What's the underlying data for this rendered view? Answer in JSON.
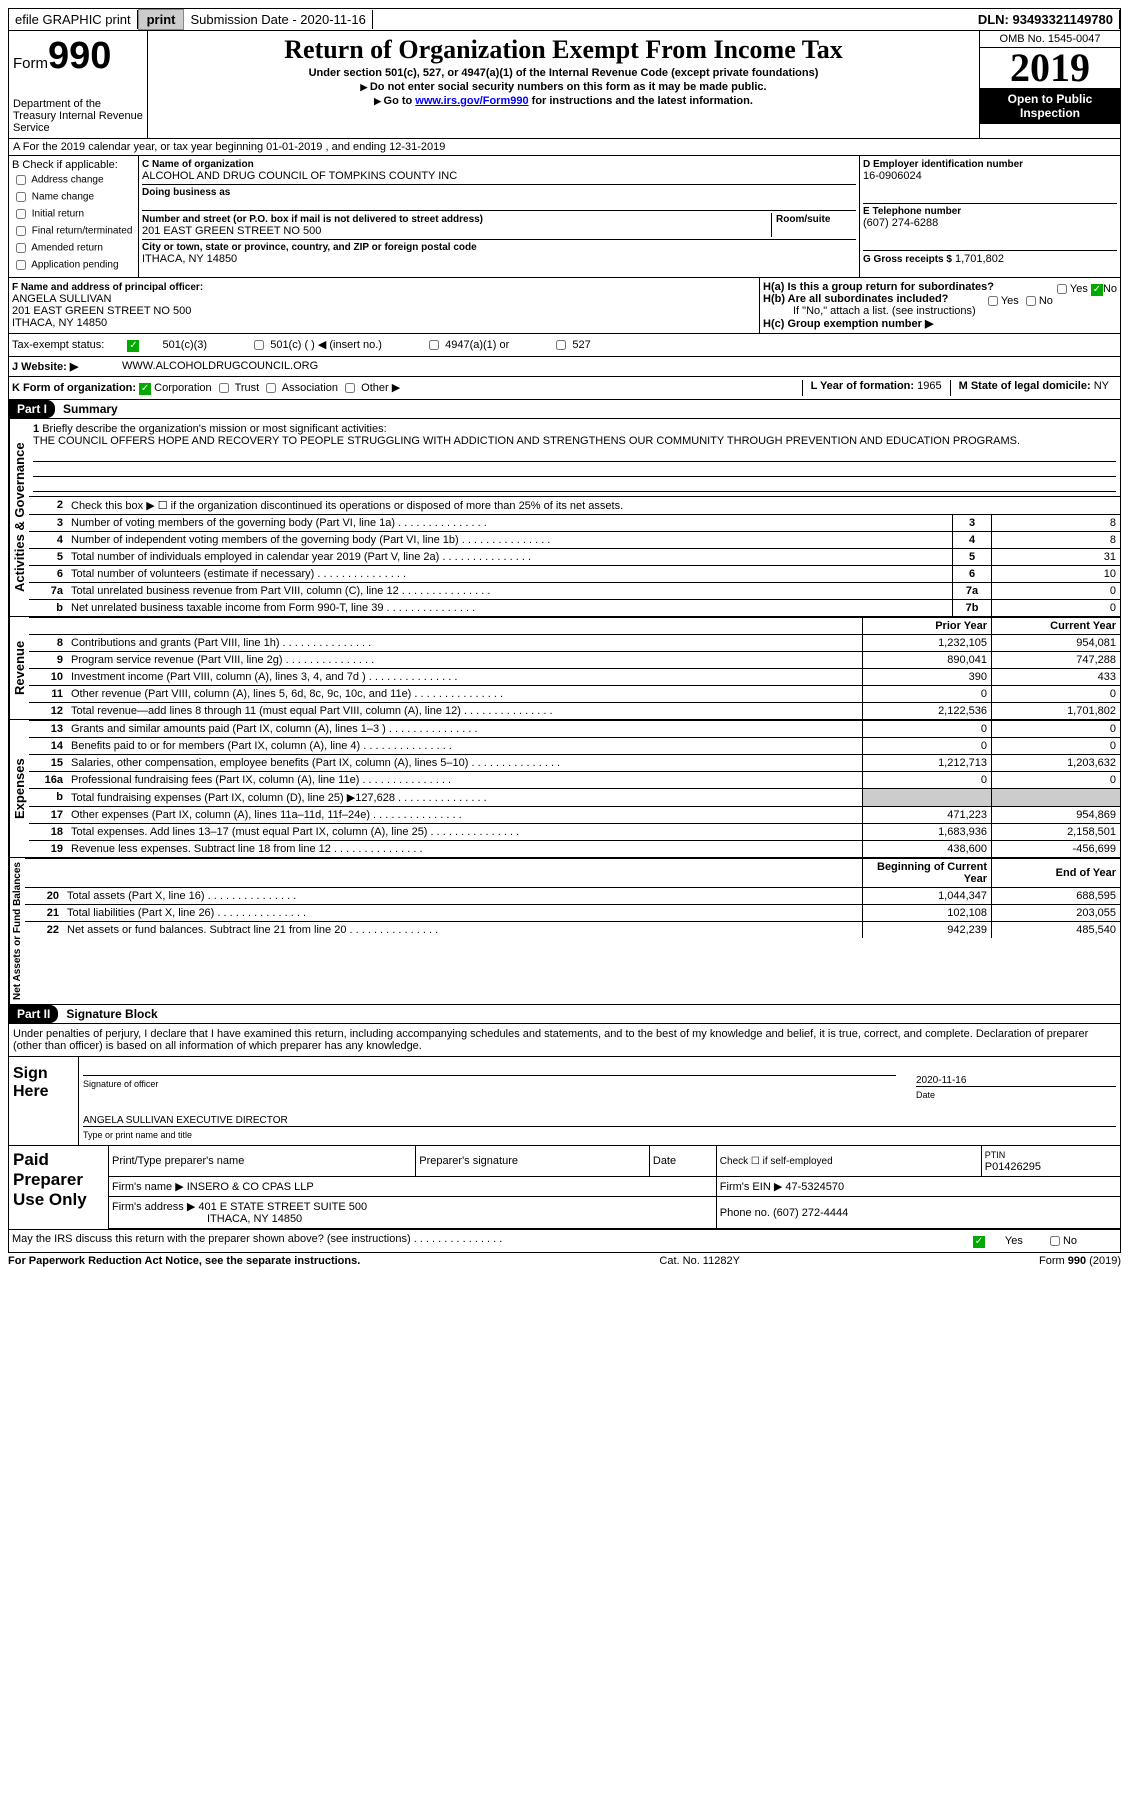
{
  "topbar": {
    "efile": "efile GRAPHIC print",
    "subdate_label": "Submission Date - 2020-11-16",
    "dln": "DLN: 93493321149780"
  },
  "header": {
    "form_word": "Form",
    "form_num": "990",
    "dept": "Department of the Treasury Internal Revenue Service",
    "title": "Return of Organization Exempt From Income Tax",
    "sub1": "Under section 501(c), 527, or 4947(a)(1) of the Internal Revenue Code (except private foundations)",
    "sub2": "Do not enter social security numbers on this form as it may be made public.",
    "sub3_pre": "Go to ",
    "sub3_link": "www.irs.gov/Form990",
    "sub3_post": " for instructions and the latest information.",
    "omb": "OMB No. 1545-0047",
    "year": "2019",
    "open": "Open to Public Inspection"
  },
  "rowA": "A For the 2019 calendar year, or tax year beginning 01-01-2019    , and ending 12-31-2019",
  "boxB": {
    "label": "B Check if applicable:",
    "items": [
      "Address change",
      "Name change",
      "Initial return",
      "Final return/terminated",
      "Amended return",
      "Application pending"
    ]
  },
  "boxC": {
    "name_label": "C Name of organization",
    "name": "ALCOHOL AND DRUG COUNCIL OF TOMPKINS COUNTY INC",
    "dba_label": "Doing business as",
    "addr_label": "Number and street (or P.O. box if mail is not delivered to street address)",
    "room_label": "Room/suite",
    "addr": "201 EAST GREEN STREET NO 500",
    "city_label": "City or town, state or province, country, and ZIP or foreign postal code",
    "city": "ITHACA, NY  14850"
  },
  "boxD": {
    "label": "D Employer identification number",
    "val": "16-0906024"
  },
  "boxE": {
    "label": "E Telephone number",
    "val": "(607) 274-6288"
  },
  "boxG": {
    "label": "G Gross receipts $",
    "val": "1,701,802"
  },
  "boxF": {
    "label": "F  Name and address of principal officer:",
    "name": "ANGELA SULLIVAN",
    "addr": "201 EAST GREEN STREET NO 500",
    "city": "ITHACA, NY  14850"
  },
  "boxH": {
    "a": "H(a)  Is this a group return for subordinates?",
    "b": "H(b)  Are all subordinates included?",
    "note": "If \"No,\" attach a list. (see instructions)",
    "c": "H(c)  Group exemption number ▶",
    "yes": "Yes",
    "no": "No"
  },
  "status": {
    "label": "Tax-exempt status:",
    "c3": "501(c)(3)",
    "c": "501(c) (   ) ◀ (insert no.)",
    "a1": "4947(a)(1) or",
    "s527": "527"
  },
  "boxJ": {
    "label": "J    Website: ▶",
    "val": "WWW.ALCOHOLDRUGCOUNCIL.ORG"
  },
  "boxK": {
    "label": "K Form of organization:",
    "corp": "Corporation",
    "trust": "Trust",
    "assoc": "Association",
    "other": "Other ▶"
  },
  "boxL": {
    "label": "L Year of formation:",
    "val": "1965"
  },
  "boxM": {
    "label": "M State of legal domicile:",
    "val": "NY"
  },
  "part1": {
    "num": "Part I",
    "title": "Summary"
  },
  "p1": {
    "l1": "Briefly describe the organization's mission or most significant activities:",
    "mission": "THE COUNCIL OFFERS HOPE AND RECOVERY TO PEOPLE STRUGGLING WITH ADDICTION AND STRENGTHENS OUR COMMUNITY THROUGH PREVENTION AND EDUCATION PROGRAMS.",
    "l2": "Check this box ▶ ☐  if the organization discontinued its operations or disposed of more than 25% of its net assets.",
    "lines": [
      {
        "n": "3",
        "t": "Number of voting members of the governing body (Part VI, line 1a)",
        "b": "3",
        "v": "8"
      },
      {
        "n": "4",
        "t": "Number of independent voting members of the governing body (Part VI, line 1b)",
        "b": "4",
        "v": "8"
      },
      {
        "n": "5",
        "t": "Total number of individuals employed in calendar year 2019 (Part V, line 2a)",
        "b": "5",
        "v": "31"
      },
      {
        "n": "6",
        "t": "Total number of volunteers (estimate if necessary)",
        "b": "6",
        "v": "10"
      },
      {
        "n": "7a",
        "t": "Total unrelated business revenue from Part VIII, column (C), line 12",
        "b": "7a",
        "v": "0"
      },
      {
        "n": "b",
        "t": "Net unrelated business taxable income from Form 990-T, line 39",
        "b": "7b",
        "v": "0"
      }
    ],
    "prior": "Prior Year",
    "current": "Current Year",
    "rev": [
      {
        "n": "8",
        "t": "Contributions and grants (Part VIII, line 1h)",
        "p": "1,232,105",
        "c": "954,081"
      },
      {
        "n": "9",
        "t": "Program service revenue (Part VIII, line 2g)",
        "p": "890,041",
        "c": "747,288"
      },
      {
        "n": "10",
        "t": "Investment income (Part VIII, column (A), lines 3, 4, and 7d )",
        "p": "390",
        "c": "433"
      },
      {
        "n": "11",
        "t": "Other revenue (Part VIII, column (A), lines 5, 6d, 8c, 9c, 10c, and 11e)",
        "p": "0",
        "c": "0"
      },
      {
        "n": "12",
        "t": "Total revenue—add lines 8 through 11 (must equal Part VIII, column (A), line 12)",
        "p": "2,122,536",
        "c": "1,701,802"
      }
    ],
    "exp": [
      {
        "n": "13",
        "t": "Grants and similar amounts paid (Part IX, column (A), lines 1–3 )",
        "p": "0",
        "c": "0"
      },
      {
        "n": "14",
        "t": "Benefits paid to or for members (Part IX, column (A), line 4)",
        "p": "0",
        "c": "0"
      },
      {
        "n": "15",
        "t": "Salaries, other compensation, employee benefits (Part IX, column (A), lines 5–10)",
        "p": "1,212,713",
        "c": "1,203,632"
      },
      {
        "n": "16a",
        "t": "Professional fundraising fees (Part IX, column (A), line 11e)",
        "p": "0",
        "c": "0"
      },
      {
        "n": "b",
        "t": "Total fundraising expenses (Part IX, column (D), line 25) ▶127,628",
        "p": "",
        "c": "",
        "shade": true
      },
      {
        "n": "17",
        "t": "Other expenses (Part IX, column (A), lines 11a–11d, 11f–24e)",
        "p": "471,223",
        "c": "954,869"
      },
      {
        "n": "18",
        "t": "Total expenses. Add lines 13–17 (must equal Part IX, column (A), line 25)",
        "p": "1,683,936",
        "c": "2,158,501"
      },
      {
        "n": "19",
        "t": "Revenue less expenses. Subtract line 18 from line 12",
        "p": "438,600",
        "c": "-456,699"
      }
    ],
    "begin": "Beginning of Current Year",
    "end": "End of Year",
    "net": [
      {
        "n": "20",
        "t": "Total assets (Part X, line 16)",
        "p": "1,044,347",
        "c": "688,595"
      },
      {
        "n": "21",
        "t": "Total liabilities (Part X, line 26)",
        "p": "102,108",
        "c": "203,055"
      },
      {
        "n": "22",
        "t": "Net assets or fund balances. Subtract line 21 from line 20",
        "p": "942,239",
        "c": "485,540"
      }
    ],
    "side_ag": "Activities & Governance",
    "side_rev": "Revenue",
    "side_exp": "Expenses",
    "side_net": "Net Assets or Fund Balances"
  },
  "part2": {
    "num": "Part II",
    "title": "Signature Block"
  },
  "sig": {
    "decl": "Under penalties of perjury, I declare that I have examined this return, including accompanying schedules and statements, and to the best of my knowledge and belief, it is true, correct, and complete. Declaration of preparer (other than officer) is based on all information of which preparer has any knowledge.",
    "here": "Sign Here",
    "sig_officer": "Signature of officer",
    "date_lbl": "Date",
    "date": "2020-11-16",
    "name": "ANGELA SULLIVAN  EXECUTIVE DIRECTOR",
    "name_lbl": "Type or print name and title"
  },
  "paid": {
    "left": "Paid Preparer Use Only",
    "h1": "Print/Type preparer's name",
    "h2": "Preparer's signature",
    "h3": "Date",
    "h4": "Check ☐ if self-employed",
    "h5": "PTIN",
    "ptin": "P01426295",
    "firm_lbl": "Firm's name    ▶",
    "firm": "INSERO & CO CPAS LLP",
    "ein_lbl": "Firm's EIN ▶",
    "ein": "47-5324570",
    "addr_lbl": "Firm's address ▶",
    "addr": "401 E STATE STREET SUITE 500",
    "city": "ITHACA, NY  14850",
    "phone_lbl": "Phone no.",
    "phone": "(607) 272-4444"
  },
  "discuss": "May the IRS discuss this return with the preparer shown above? (see instructions)",
  "footer": {
    "l": "For Paperwork Reduction Act Notice, see the separate instructions.",
    "c": "Cat. No. 11282Y",
    "r": "Form 990 (2019)"
  }
}
